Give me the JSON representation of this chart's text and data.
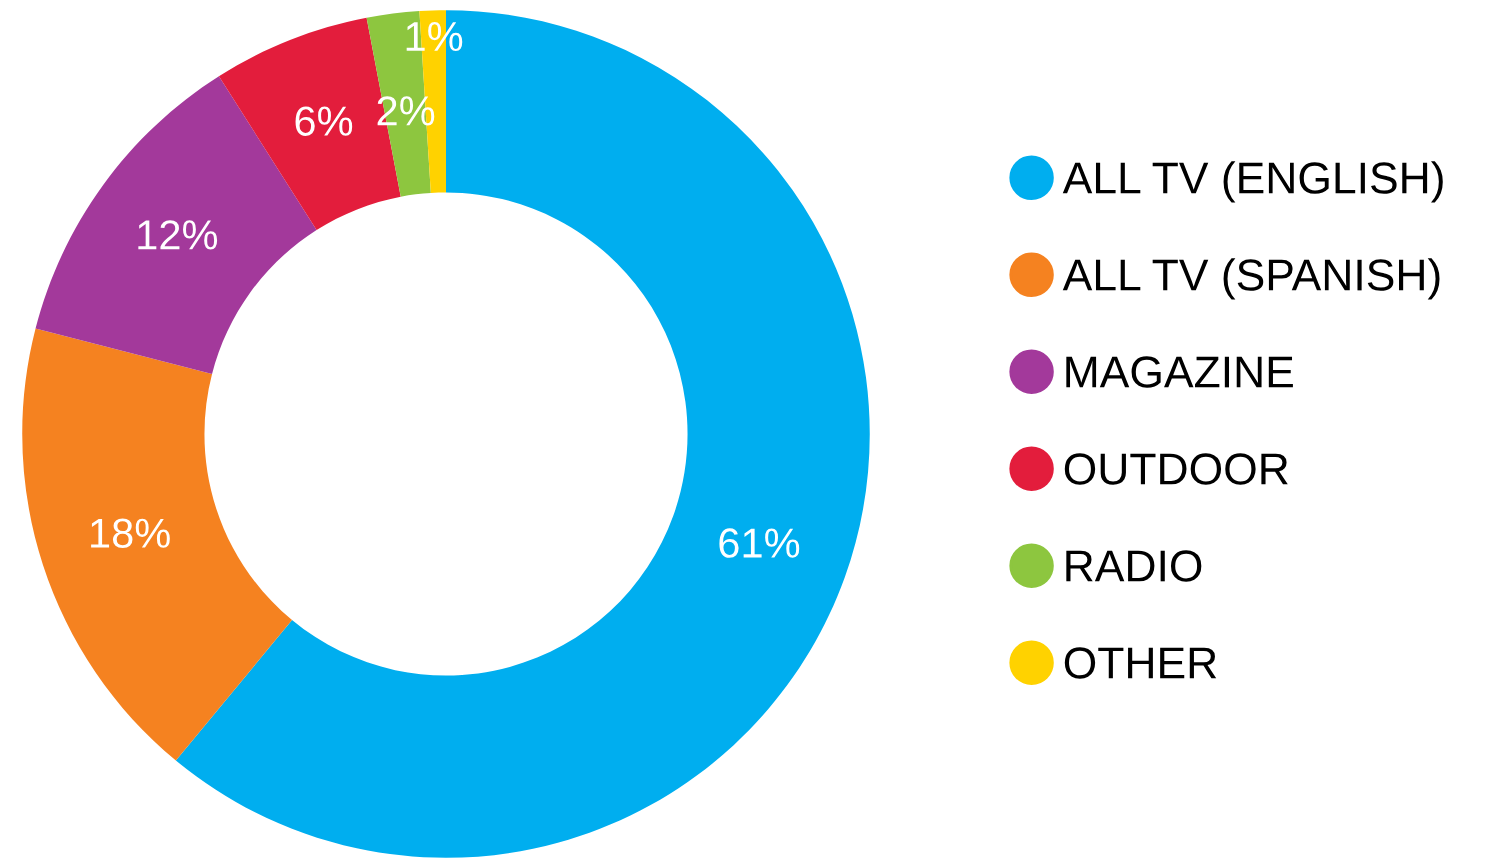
{
  "chart_data": {
    "type": "donut",
    "categories": [
      "ALL TV (ENGLISH)",
      "ALL TV (SPANISH)",
      "MAGAZINE",
      "OUTDOOR",
      "RADIO",
      "OTHER"
    ],
    "values": [
      61,
      18,
      12,
      6,
      2,
      1
    ],
    "value_labels": [
      "61%",
      "18%",
      "12%",
      "6%",
      "2%",
      "1%"
    ],
    "colors": [
      "#00aeef",
      "#f58220",
      "#a3399b",
      "#e31d3c",
      "#8dc63f",
      "#ffd200"
    ],
    "legend": "right"
  }
}
